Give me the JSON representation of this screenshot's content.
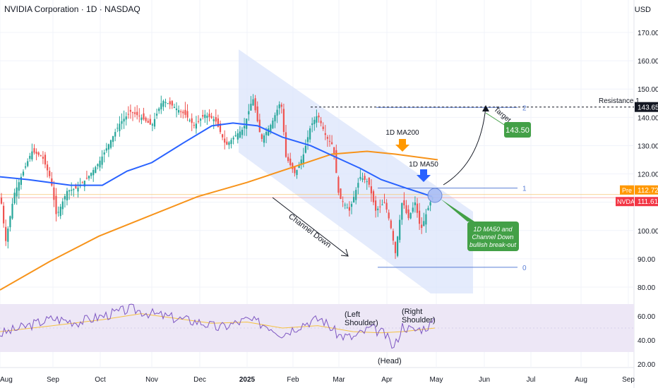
{
  "header": {
    "title": "NVIDIA Corporation · 1D · NASDAQ",
    "currency": "USD"
  },
  "colors": {
    "up": "#26a69a",
    "down": "#ef5350",
    "ma50": "#2962ff",
    "ma200": "#f7931a",
    "channel": "#dbe4fb",
    "rsi": "#7e57c2",
    "rsi_ma": "#f5c242",
    "rsi_band": "#ede7f6",
    "callout_green": "#43a047",
    "label_red": "#f23645",
    "label_orange": "#ff9800",
    "resistance": "#131722"
  },
  "chart_data": [
    {
      "type": "candlestick",
      "title": "NVIDIA Corporation · 1D · NASDAQ",
      "x_ticks": [
        "Aug",
        "Sep",
        "Oct",
        "Nov",
        "Dec",
        "2025",
        "Feb",
        "Mar",
        "Apr",
        "May",
        "Jun",
        "Jul",
        "Aug",
        "Sep"
      ],
      "y_ticks": [
        80,
        90,
        100,
        110,
        120,
        130,
        140,
        150,
        160,
        170
      ],
      "ylabel": "USD",
      "ylim": [
        75,
        180
      ],
      "price_labels": [
        {
          "tag": "Pre",
          "value": "112.72"
        },
        {
          "tag": "NVDA",
          "value": "111.61"
        },
        {
          "tag": "",
          "value": "143.65"
        }
      ],
      "monthly_closes": {
        "months": [
          "Aug",
          "Sep",
          "Oct",
          "Nov",
          "Dec",
          "2025",
          "Feb",
          "Mar",
          "Apr",
          "May"
        ],
        "values": [
          117,
          121,
          135,
          140,
          134,
          138,
          125,
          108,
          108,
          111.6
        ]
      },
      "series": [
        {
          "name": "1D MA50",
          "values": [
            119,
            117,
            118,
            124,
            134,
            138,
            133,
            123,
            112
          ]
        },
        {
          "name": "1D MA200",
          "values": [
            79,
            90,
            98,
            107,
            113,
            117,
            122,
            128,
            126
          ]
        }
      ],
      "fib_levels": [
        {
          "label": "2",
          "value": 143.5
        },
        {
          "label": "1",
          "value": 115
        },
        {
          "label": "0",
          "value": 87
        }
      ],
      "annotations": {
        "resistance": "Resistance 1",
        "channel": "Channel Down",
        "ma200": "1D MA200",
        "ma50": "1D MA50",
        "target_label": "Target",
        "target_value": "143.50",
        "breakout_line1": "1D MA50 and",
        "breakout_line2": "Channel Down",
        "breakout_line3": "bullish break-out"
      }
    },
    {
      "type": "line",
      "title": "",
      "y_ticks": [
        20,
        40,
        60
      ],
      "ylim": [
        17,
        72
      ],
      "overbought": 70,
      "oversold": 30,
      "series": [
        {
          "name": "",
          "values": [
            45,
            58,
            55,
            62,
            66,
            55,
            58,
            42,
            50,
            47,
            33,
            54,
            56
          ]
        },
        {
          "name": "",
          "values": [
            48,
            52,
            58,
            62,
            60,
            56,
            52,
            47,
            47,
            46,
            44,
            47,
            51
          ]
        }
      ],
      "annotations": {
        "left_shoulder_1": "(Left",
        "left_shoulder_2": "Shoulder)",
        "right_shoulder_1": "(Right",
        "right_shoulder_2": "Shoulder)",
        "head": "(Head)"
      }
    }
  ]
}
